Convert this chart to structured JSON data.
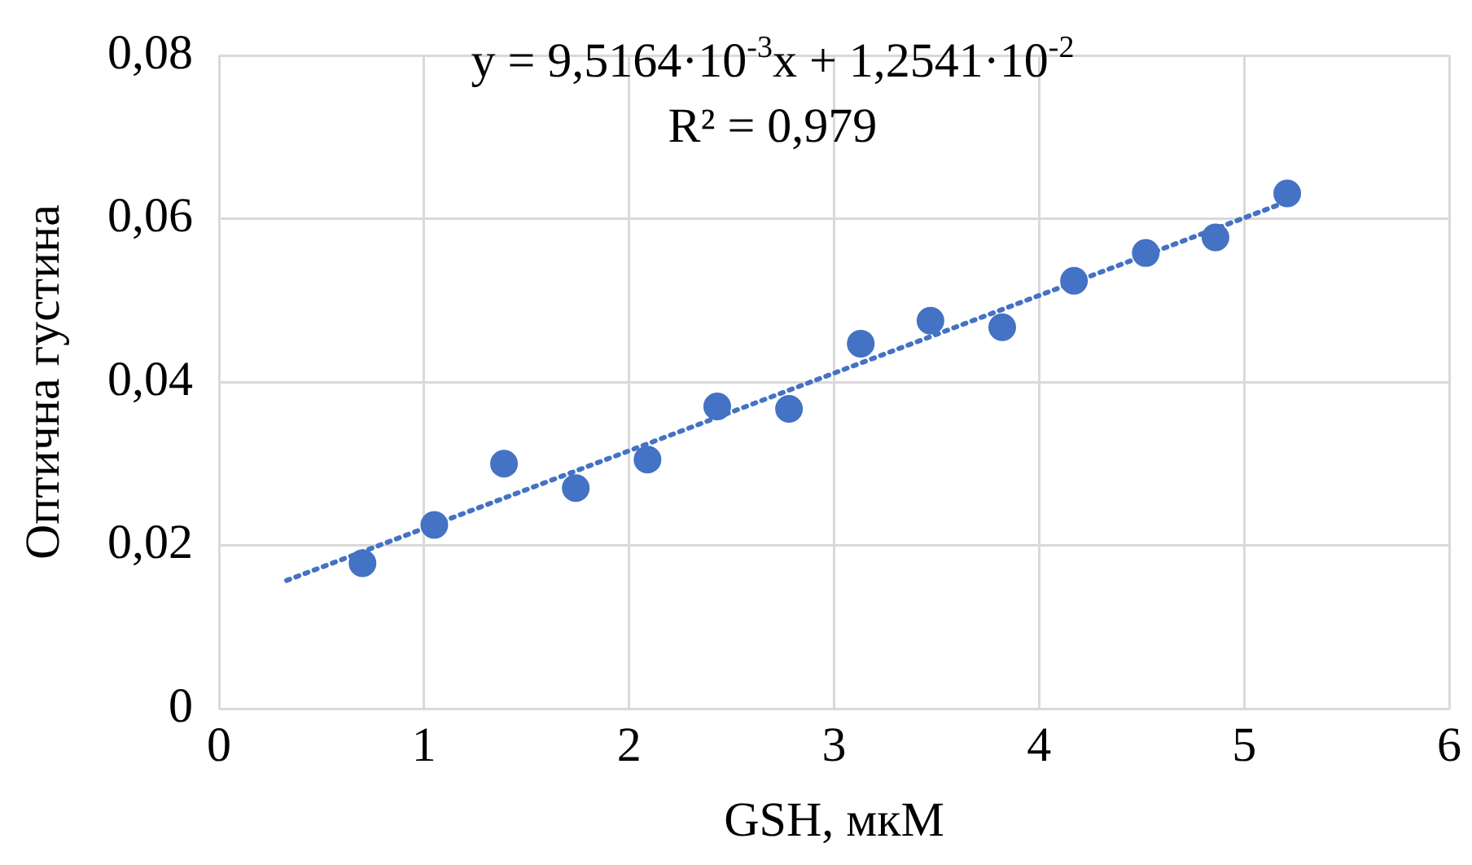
{
  "chart_data": {
    "type": "scatter",
    "xlabel": "GSH, мкМ",
    "ylabel": "Оптична густина",
    "xlim": [
      0,
      6
    ],
    "xticks": [
      0,
      1,
      2,
      3,
      4,
      5,
      6
    ],
    "ylim": [
      0,
      0.08
    ],
    "yticks": [
      0,
      {
        "value": 0.02,
        "label": "0,02"
      },
      {
        "value": 0.04,
        "label": "0,04"
      },
      {
        "value": 0.06,
        "label": "0,06"
      },
      {
        "value": 0.08,
        "label": "0,08"
      }
    ],
    "grid": true,
    "legend": false,
    "marker": "circle",
    "annotations": [
      "y = 9,5164·10$^{-3}$x + 1,2541·10$^{-2}$",
      "R² = 0,979"
    ],
    "series": [
      {
        "color": "#4472c4",
        "x": [
          0.7,
          1.05,
          1.39,
          1.74,
          2.09,
          2.43,
          2.78,
          3.13,
          3.47,
          3.82,
          4.17,
          4.52,
          4.86,
          5.21
        ],
        "values": [
          0.0178,
          0.0225,
          0.03,
          0.027,
          0.0305,
          0.037,
          0.0367,
          0.0447,
          0.0475,
          0.0467,
          0.0524,
          0.0558,
          0.0577,
          0.0631
        ]
      },
      {
        "type": "line",
        "color": "#4472c4",
        "marker": "none",
        "line_style": "dotted",
        "x": [
          0.33,
          5.21
        ],
        "values": [
          0.0157,
          0.0621
        ]
      }
    ]
  }
}
